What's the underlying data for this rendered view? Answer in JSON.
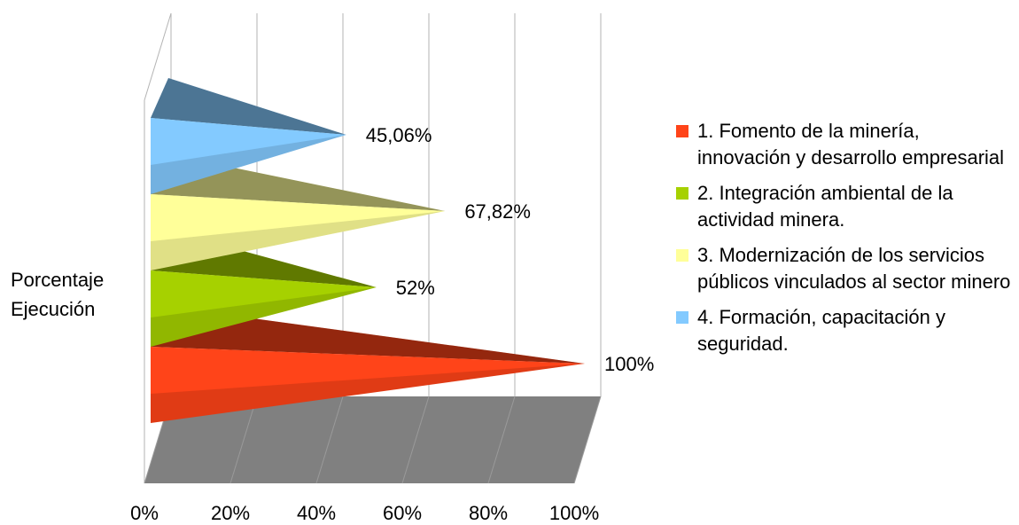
{
  "chart_data": {
    "type": "cone-bar",
    "categories": [
      "Porcentaje Ejecución"
    ],
    "series": [
      {
        "name": "1. Fomento de la minería, innovación y desarrollo empresarial",
        "color": "#ff4419",
        "values": [
          100
        ],
        "value_labels": [
          "100%"
        ]
      },
      {
        "name": "2. Integración ambiental de la actividad minera.",
        "color": "#a6d100",
        "values": [
          52
        ],
        "value_labels": [
          "52%"
        ]
      },
      {
        "name": "3. Modernización de los servicios públicos vinculados al sector minero",
        "color": "#ffff99",
        "values": [
          67.82
        ],
        "value_labels": [
          "67,82%"
        ]
      },
      {
        "name": "4. Formación, capacitación y seguridad.",
        "color": "#83caff",
        "values": [
          45.06
        ],
        "value_labels": [
          "45,06%"
        ]
      }
    ],
    "xlim": [
      0,
      100
    ],
    "xticks": [
      {
        "value": 0,
        "label": "0%"
      },
      {
        "value": 20,
        "label": "20%"
      },
      {
        "value": 40,
        "label": "40%"
      },
      {
        "value": 60,
        "label": "60%"
      },
      {
        "value": 80,
        "label": "80%"
      },
      {
        "value": 100,
        "label": "100%"
      }
    ],
    "grid": true
  }
}
